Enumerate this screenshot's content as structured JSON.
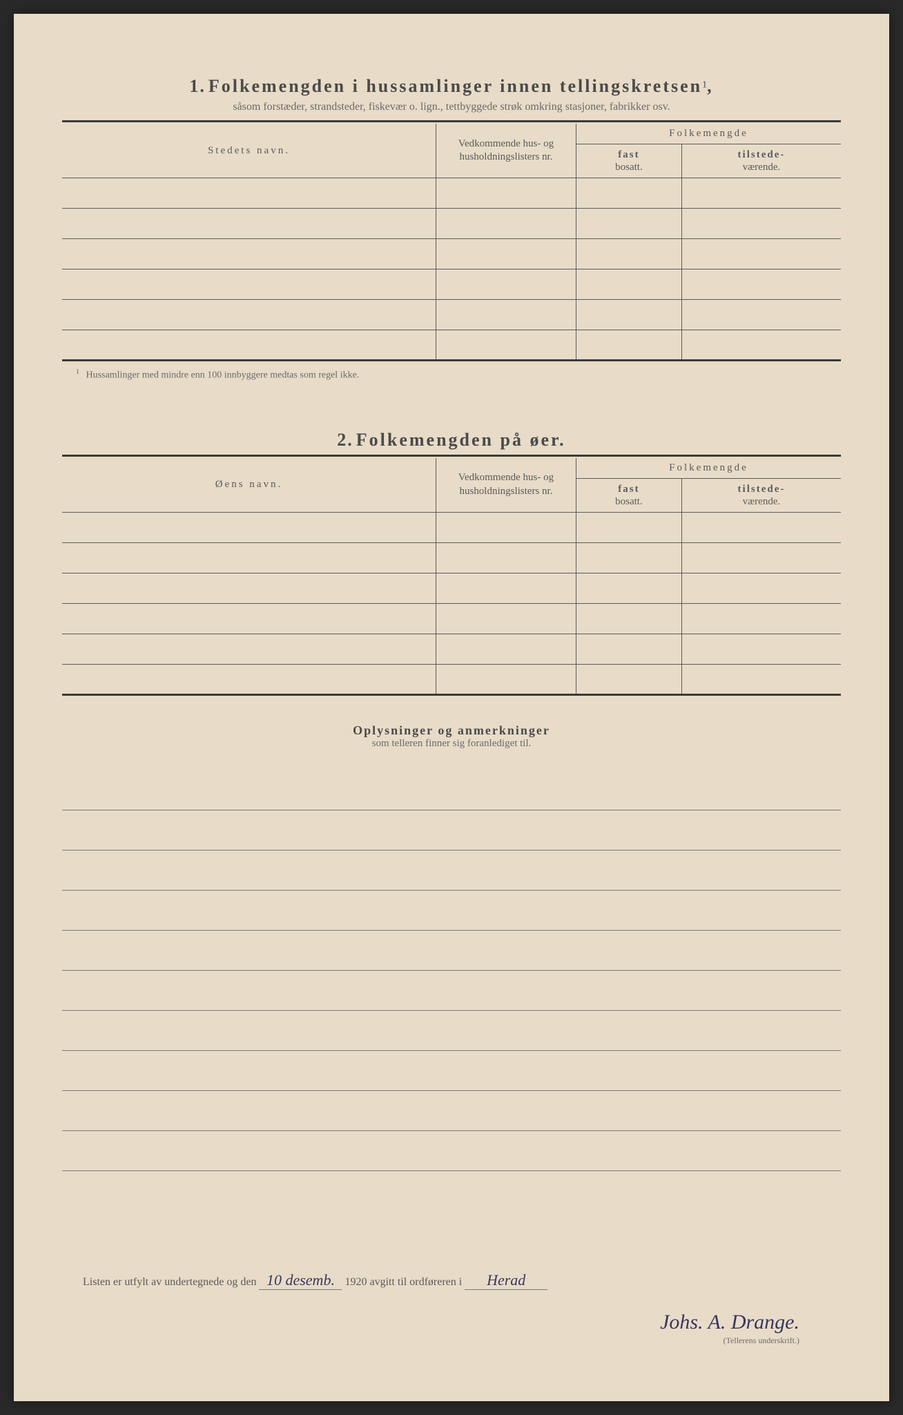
{
  "page": {
    "background_color": "#e8dcc8",
    "text_color": "#4a4a4a",
    "border_color": "#5a5a5a",
    "handwriting_color": "#3a3560"
  },
  "section1": {
    "number": "1.",
    "title": "Folkemengden i hussamlinger innen tellingskretsen",
    "sup": "1",
    "comma": ",",
    "subtitle": "såsom forstæder, strandsteder, fiskevær o. lign., tettbyggede strøk omkring stasjoner, fabrikker osv.",
    "col_name": "Stedets navn.",
    "col_ref": "Vedkommende hus- og husholdningslisters nr.",
    "col_folk": "Folkemengde",
    "col_fast_b": "fast",
    "col_fast": "bosatt.",
    "col_tilstede_b": "tilstede-",
    "col_tilstede": "værende.",
    "rows": 6,
    "footnote_num": "1",
    "footnote": "Hussamlinger med mindre enn 100 innbyggere medtas som regel ikke."
  },
  "section2": {
    "number": "2.",
    "title": "Folkemengden på øer.",
    "col_name": "Øens navn.",
    "col_ref": "Vedkommende hus- og husholdningslisters nr.",
    "col_folk": "Folkemengde",
    "col_fast_b": "fast",
    "col_fast": "bosatt.",
    "col_tilstede_b": "tilstede-",
    "col_tilstede": "værende.",
    "rows": 6
  },
  "remarks": {
    "title": "Oplysninger og anmerkninger",
    "subtitle": "som telleren finner sig foranlediget til.",
    "line_count": 10
  },
  "bottom": {
    "text_before": "Listen er utfylt av undertegnede og den",
    "date_hand": "10 desemb.",
    "year": "1920",
    "text_mid": "avgitt til ordføreren i",
    "place_hand": "Herad",
    "signature": "Johs. A. Drange.",
    "sig_label": "(Tellerens underskrift.)"
  }
}
